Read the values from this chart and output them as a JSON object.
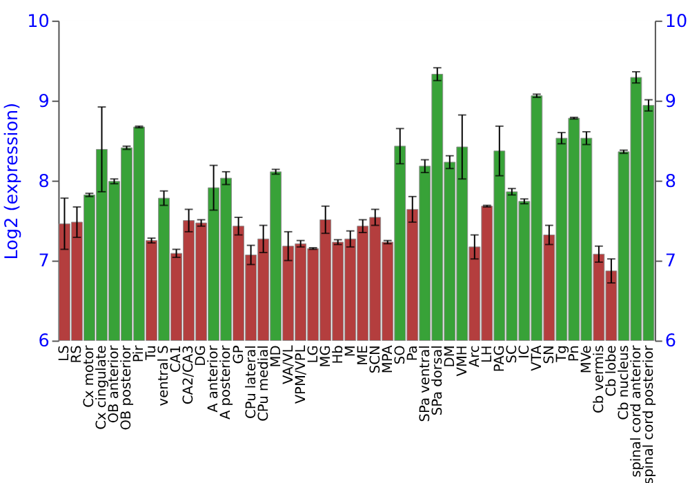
{
  "chart_data": {
    "type": "bar",
    "ylabel": "Log2 (expression)",
    "categories": [
      "LS",
      "RS",
      "Cx motor",
      "Cx cingulate",
      "OB anterior",
      "OB posterior",
      "Pir",
      "Tu",
      "ventral S",
      "CA1",
      "CA2/CA3",
      "DG",
      "A anterior",
      "A posterior",
      "GP",
      "CPu lateral",
      "CPu medial",
      "MD",
      "VA/VL",
      "VPM/VPL",
      "LG",
      "MG",
      "Hb",
      "M",
      "ME",
      "SCN",
      "MPA",
      "SO",
      "Pa",
      "SPa ventral",
      "SPa dorsal",
      "DM",
      "VMH",
      "Arc",
      "LH",
      "PAG",
      "SC",
      "IC",
      "VTA",
      "SN",
      "Tg",
      "Pn",
      "MVe",
      "Cb vermis",
      "Cb lobe",
      "Cb nucleus",
      "spinal cord anterior",
      "spinal cord posterior"
    ],
    "values": [
      7.46,
      7.48,
      7.82,
      8.39,
      7.99,
      8.41,
      8.67,
      7.25,
      7.78,
      7.09,
      7.5,
      7.47,
      7.91,
      8.03,
      7.43,
      7.07,
      7.27,
      8.11,
      7.18,
      7.21,
      7.15,
      7.51,
      7.23,
      7.27,
      7.43,
      7.54,
      7.23,
      8.43,
      7.64,
      8.18,
      9.33,
      8.23,
      8.42,
      7.17,
      7.68,
      8.37,
      7.86,
      7.74,
      9.06,
      7.32,
      8.53,
      8.78,
      8.53,
      7.08,
      6.87,
      8.36,
      9.29,
      8.94
    ],
    "errors": [
      0.32,
      0.19,
      0.02,
      0.53,
      0.03,
      0.02,
      0.01,
      0.03,
      0.09,
      0.05,
      0.14,
      0.04,
      0.28,
      0.08,
      0.11,
      0.12,
      0.17,
      0.03,
      0.18,
      0.04,
      0.01,
      0.17,
      0.03,
      0.1,
      0.08,
      0.1,
      0.02,
      0.22,
      0.16,
      0.08,
      0.08,
      0.08,
      0.4,
      0.15,
      0.01,
      0.31,
      0.04,
      0.03,
      0.02,
      0.12,
      0.07,
      0.01,
      0.08,
      0.1,
      0.15,
      0.02,
      0.07,
      0.07
    ],
    "colors": [
      "#b03434",
      "#b03434",
      "#2e9e2e",
      "#2e9e2e",
      "#2e9e2e",
      "#2e9e2e",
      "#2e9e2e",
      "#b03434",
      "#2e9e2e",
      "#b03434",
      "#b03434",
      "#b03434",
      "#2e9e2e",
      "#2e9e2e",
      "#b03434",
      "#b03434",
      "#b03434",
      "#2e9e2e",
      "#b03434",
      "#b03434",
      "#b03434",
      "#b03434",
      "#b03434",
      "#b03434",
      "#b03434",
      "#b03434",
      "#b03434",
      "#2e9e2e",
      "#b03434",
      "#2e9e2e",
      "#2e9e2e",
      "#2e9e2e",
      "#2e9e2e",
      "#b03434",
      "#b03434",
      "#2e9e2e",
      "#2e9e2e",
      "#2e9e2e",
      "#2e9e2e",
      "#b03434",
      "#2e9e2e",
      "#2e9e2e",
      "#2e9e2e",
      "#b03434",
      "#b03434",
      "#2e9e2e",
      "#2e9e2e",
      "#2e9e2e"
    ],
    "ylim": [
      6,
      10
    ],
    "yticks": [
      6,
      7,
      8,
      9,
      10
    ],
    "y2lim": [
      6,
      10
    ],
    "y2ticks": [
      6,
      7,
      8,
      9,
      10
    ],
    "grid": "y"
  }
}
